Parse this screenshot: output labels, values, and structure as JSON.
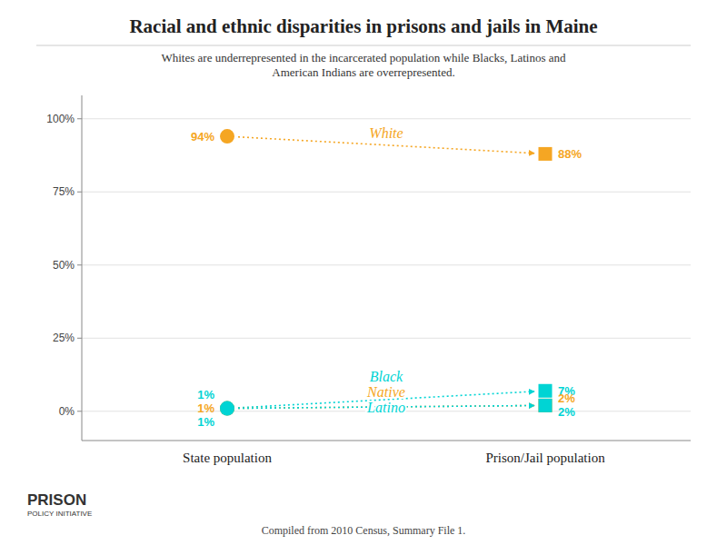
{
  "chart_data": {
    "type": "slope",
    "title": "Racial and ethnic disparities in prisons and jails in Maine",
    "subtitle": "Whites are underrepresented in the incarcerated population while Blacks, Latinos and\nAmerican Indians are overrepresented.",
    "categories": [
      "State population",
      "Prison/Jail population"
    ],
    "series": [
      {
        "name": "White",
        "color": "#f5a623",
        "values": [
          94,
          88
        ],
        "value_labels": [
          "94%",
          "88%"
        ]
      },
      {
        "name": "Black",
        "color": "#00d4d4",
        "values": [
          1,
          7
        ],
        "value_labels": [
          "1%",
          "7%"
        ]
      },
      {
        "name": "Native",
        "color": "#f5a623",
        "values": [
          1,
          2
        ],
        "value_labels": [
          "1%",
          "2%"
        ]
      },
      {
        "name": "Latino",
        "color": "#00d4d4",
        "values": [
          1,
          2
        ],
        "value_labels": [
          "1%",
          "2%"
        ]
      }
    ],
    "ylim": [
      -10,
      108
    ],
    "yticks": [
      {
        "value": 0,
        "label": "0%"
      },
      {
        "value": 25,
        "label": "25%"
      },
      {
        "value": 50,
        "label": "50%"
      },
      {
        "value": 75,
        "label": "75%"
      },
      {
        "value": 100,
        "label": "100%"
      }
    ],
    "grid": true,
    "data_labels": true,
    "line_style": "dotted",
    "annotations": [
      "Compiled from 2010 Census, Summary File 1.",
      "PRISON",
      "POLICY INITIATIVE"
    ]
  }
}
